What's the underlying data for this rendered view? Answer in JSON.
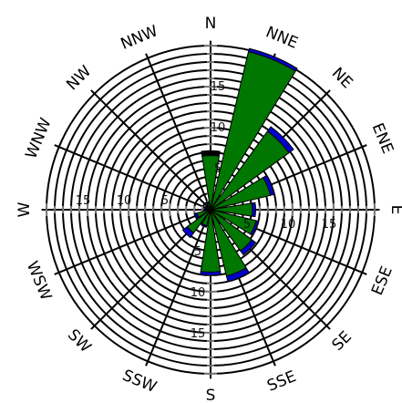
{
  "chart_data": {
    "type": "wind-rose",
    "directions": [
      "N",
      "NNE",
      "NE",
      "ENE",
      "E",
      "ESE",
      "SE",
      "SSE",
      "S",
      "SSW",
      "SW",
      "WSW",
      "W",
      "WNW",
      "NW",
      "NNW"
    ],
    "radial_max": 20,
    "radial_ticks": [
      5,
      10,
      15
    ],
    "ring_step": 1,
    "series": [
      {
        "color": "#0000cc",
        "values": [
          7.2,
          20.2,
          12.5,
          8.0,
          5.5,
          6.0,
          6.8,
          9.0,
          8.0,
          2.2,
          4.2,
          2.0,
          0.8,
          0.7,
          0.6,
          1.0
        ]
      },
      {
        "color": "#007700",
        "values": [
          6.6,
          19.8,
          11.8,
          7.5,
          5.1,
          5.7,
          6.2,
          8.3,
          7.6,
          2.0,
          3.5,
          1.7,
          0.6,
          0.5,
          0.5,
          0.8
        ]
      }
    ],
    "top_cap_color": "#000000"
  }
}
